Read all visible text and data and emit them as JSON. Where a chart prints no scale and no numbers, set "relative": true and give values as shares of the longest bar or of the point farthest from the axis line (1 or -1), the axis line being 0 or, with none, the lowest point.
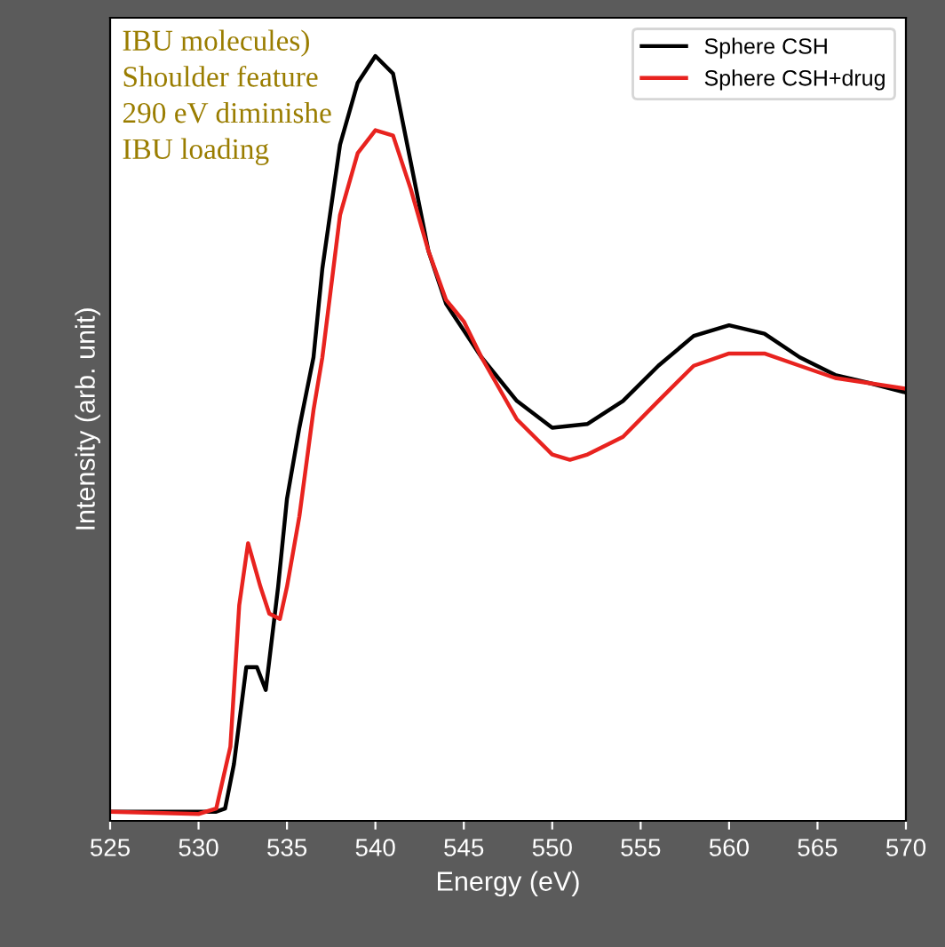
{
  "chart_data": {
    "type": "line",
    "relative": true,
    "xlabel": "Energy (eV)",
    "ylabel": "Intensity (arb. unit)",
    "xlim": [
      525,
      570
    ],
    "xticks": [
      525,
      530,
      535,
      540,
      545,
      550,
      555,
      560,
      565,
      570
    ],
    "legend": "top right",
    "grid": false,
    "annotations": [
      "IBU molecules)",
      "Shoulder feature",
      "290 eV diminishe",
      "IBU loading"
    ],
    "series": [
      {
        "name": "Sphere CSH",
        "color": "#000000",
        "x": [
          525,
          530,
          531,
          531.5,
          532,
          532.7,
          533.3,
          533.8,
          534.5,
          535,
          535.7,
          536.5,
          537,
          538,
          539,
          540,
          541,
          542,
          543,
          544,
          545,
          546,
          548,
          550,
          552,
          554,
          556,
          558,
          560,
          562,
          564,
          566,
          568,
          570
        ],
        "values": [
          0.012,
          0.012,
          0.012,
          0.016,
          0.074,
          0.201,
          0.201,
          0.171,
          0.306,
          0.421,
          0.514,
          0.606,
          0.722,
          0.884,
          0.965,
          1,
          0.977,
          0.861,
          0.745,
          0.676,
          0.641,
          0.606,
          0.549,
          0.514,
          0.519,
          0.549,
          0.595,
          0.634,
          0.648,
          0.637,
          0.606,
          0.583,
          0.572,
          0.56
        ]
      },
      {
        "name": "Sphere CSH+drug",
        "color": "#e8231f",
        "x": [
          525,
          530,
          531,
          531.8,
          532.3,
          532.8,
          533.5,
          534,
          534.6,
          535,
          535.7,
          536.5,
          537,
          538,
          539,
          540,
          541,
          542,
          543,
          544,
          545,
          546,
          548,
          550,
          551,
          552,
          554,
          556,
          558,
          560,
          562,
          564,
          566,
          568,
          570
        ],
        "values": [
          0.012,
          0.009,
          0.016,
          0.097,
          0.282,
          0.363,
          0.306,
          0.271,
          0.264,
          0.306,
          0.398,
          0.537,
          0.606,
          0.792,
          0.873,
          0.903,
          0.896,
          0.826,
          0.745,
          0.681,
          0.653,
          0.606,
          0.525,
          0.479,
          0.472,
          0.479,
          0.502,
          0.549,
          0.595,
          0.611,
          0.611,
          0.595,
          0.579,
          0.572,
          0.565
        ]
      }
    ]
  }
}
